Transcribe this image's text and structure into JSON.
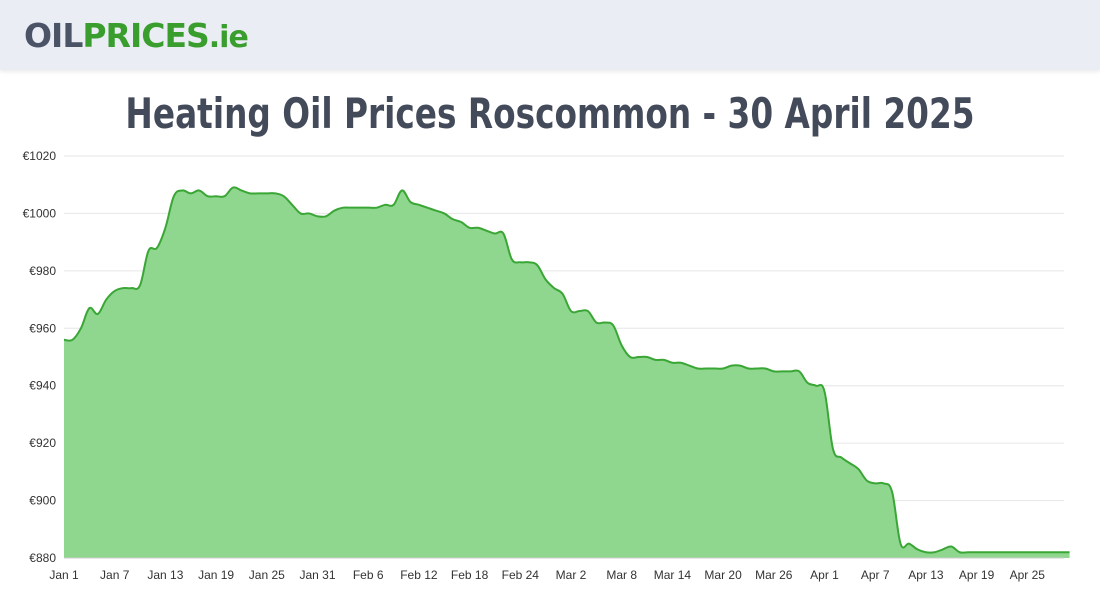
{
  "logo": {
    "part1": "OIL",
    "part2": "PRICES",
    "part3": ".ie"
  },
  "page_title": "Heating Oil Prices Roscommon - 30 April 2025",
  "colors": {
    "line": "#3aa635",
    "fill": "#8fd68f",
    "grid": "#e6e6e6",
    "header_bg": "#eaedf4",
    "title": "#434a5a"
  },
  "chart_data": {
    "type": "area",
    "title": "Heating Oil Prices Roscommon - 30 April 2025",
    "xlabel": "",
    "ylabel": "",
    "ylim": [
      880,
      1020
    ],
    "y_ticks": [
      880,
      900,
      920,
      940,
      960,
      980,
      1000,
      1020
    ],
    "y_tick_labels": [
      "€880",
      "€900",
      "€920",
      "€940",
      "€960",
      "€980",
      "€1000",
      "€1020"
    ],
    "x_ticks": [
      "Jan 1",
      "Jan 7",
      "Jan 13",
      "Jan 19",
      "Jan 25",
      "Jan 31",
      "Feb 6",
      "Feb 12",
      "Feb 18",
      "Feb 24",
      "Mar 2",
      "Mar 8",
      "Mar 14",
      "Mar 20",
      "Mar 26",
      "Apr 1",
      "Apr 7",
      "Apr 13",
      "Apr 19",
      "Apr 25"
    ],
    "grid": true,
    "series": [
      {
        "values": [
          956,
          956,
          960,
          967,
          965,
          970,
          973,
          974,
          974,
          975,
          987,
          988,
          995,
          1006,
          1008,
          1007,
          1008,
          1006,
          1006,
          1006,
          1009,
          1008,
          1007,
          1007,
          1007,
          1007,
          1006,
          1003,
          1000,
          1000,
          999,
          999,
          1001,
          1002,
          1002,
          1002,
          1002,
          1002,
          1003,
          1003,
          1008,
          1004,
          1003,
          1002,
          1001,
          1000,
          998,
          997,
          995,
          995,
          994,
          993,
          993,
          984,
          983,
          983,
          982,
          977,
          974,
          972,
          966,
          966,
          966,
          962,
          962,
          961,
          954,
          950,
          950,
          950,
          949,
          949,
          948,
          948,
          947,
          946,
          946,
          946,
          946,
          947,
          947,
          946,
          946,
          946,
          945,
          945,
          945,
          945,
          941,
          940,
          938,
          918,
          915,
          913,
          911,
          907,
          906,
          906,
          903,
          885,
          885,
          883,
          882,
          882,
          883,
          884,
          882,
          882,
          882,
          882,
          882,
          882,
          882,
          882,
          882,
          882,
          882,
          882,
          882,
          882
        ]
      }
    ]
  }
}
